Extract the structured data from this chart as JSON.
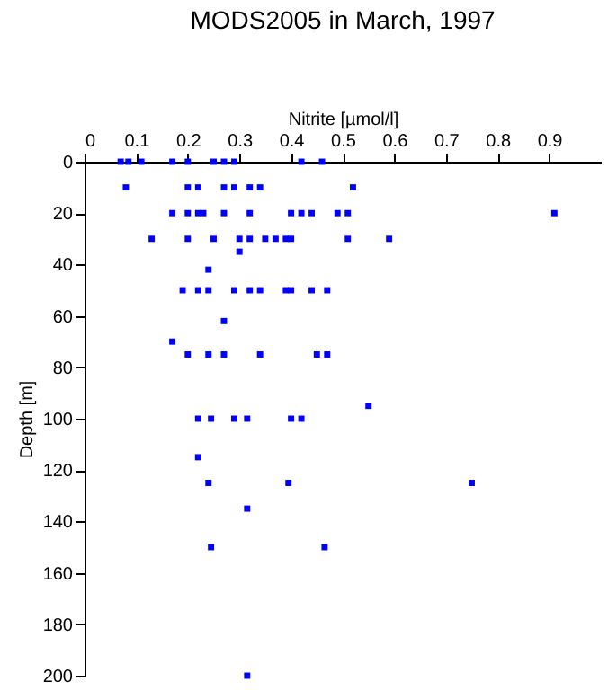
{
  "chart_data": {
    "type": "scatter",
    "title": "MODS2005 in March, 1997",
    "xlabel": "Nitrite [µmol/l]",
    "ylabel": "Depth [m]",
    "x": [
      0.07,
      0.085,
      0.11,
      0.17,
      0.2,
      0.25,
      0.27,
      0.29,
      0.42,
      0.46,
      0.08,
      0.2,
      0.22,
      0.27,
      0.29,
      0.32,
      0.34,
      0.52,
      0.17,
      0.2,
      0.22,
      0.23,
      0.27,
      0.32,
      0.4,
      0.42,
      0.44,
      0.49,
      0.51,
      0.91,
      0.13,
      0.2,
      0.25,
      0.3,
      0.32,
      0.35,
      0.37,
      0.39,
      0.4,
      0.51,
      0.59,
      0.3,
      0.24,
      0.19,
      0.22,
      0.24,
      0.29,
      0.32,
      0.34,
      0.39,
      0.4,
      0.44,
      0.47,
      0.27,
      0.17,
      0.2,
      0.24,
      0.27,
      0.34,
      0.45,
      0.47,
      0.55,
      0.22,
      0.245,
      0.29,
      0.315,
      0.4,
      0.42,
      0.22,
      0.24,
      0.395,
      0.75,
      0.315,
      0.245,
      0.465,
      0.315
    ],
    "series": [
      {
        "color": "#0000ff",
        "values": [
          0,
          0,
          0,
          0,
          0,
          0,
          0,
          0,
          0,
          0,
          10,
          10,
          10,
          10,
          10,
          10,
          10,
          10,
          20,
          20,
          20,
          20,
          20,
          20,
          20,
          20,
          20,
          20,
          20,
          20,
          30,
          30,
          30,
          30,
          30,
          30,
          30,
          30,
          30,
          30,
          30,
          35,
          42,
          50,
          50,
          50,
          50,
          50,
          50,
          50,
          50,
          50,
          50,
          62,
          70,
          75,
          75,
          75,
          75,
          75,
          75,
          95,
          100,
          100,
          100,
          100,
          100,
          100,
          115,
          125,
          125,
          125,
          135,
          150,
          150,
          200
        ]
      }
    ],
    "xlim": [
      0,
      1
    ],
    "xticks": [
      0,
      0.1,
      0.2,
      0.3,
      0.4,
      0.5,
      0.6,
      0.7,
      0.8,
      0.9
    ],
    "ylim": [
      200,
      0
    ],
    "yticks": [
      0,
      20,
      40,
      60,
      80,
      100,
      120,
      140,
      160,
      180,
      200
    ],
    "marker": "square",
    "grid": false,
    "legend": false
  }
}
